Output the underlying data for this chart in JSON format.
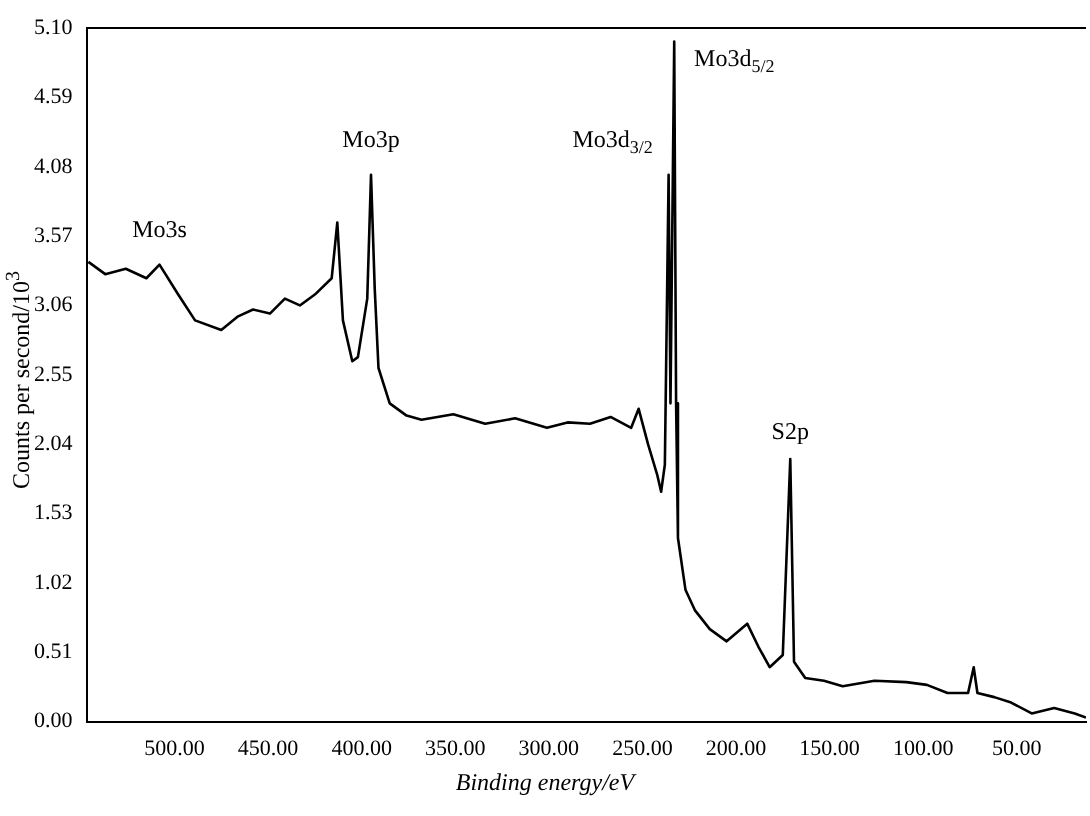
{
  "chart_data": {
    "type": "line",
    "xlabel": "Binding energy/eV",
    "ylabel": "Counts per second/10$^{3}$",
    "x": [
      546,
      537,
      526,
      515,
      508,
      498,
      489,
      475,
      466,
      458,
      449,
      441,
      433,
      425,
      416,
      413,
      410,
      405,
      402,
      397,
      395,
      393,
      391,
      385,
      376,
      368,
      351,
      334,
      318,
      301,
      290,
      278,
      267,
      256,
      252,
      247,
      242,
      240,
      238,
      236,
      235,
      233,
      232,
      231,
      227,
      222,
      214,
      205,
      194,
      188,
      182,
      175,
      171,
      169,
      163,
      153,
      143,
      126,
      109,
      98,
      87,
      76,
      73,
      71,
      62,
      53,
      42,
      30,
      19,
      13
    ],
    "series": [
      {
        "color": "#000000",
        "values": [
          3.38,
          3.29,
          3.33,
          3.26,
          3.36,
          3.14,
          2.95,
          2.88,
          2.98,
          3.03,
          3.0,
          3.11,
          3.06,
          3.14,
          3.26,
          3.67,
          2.95,
          2.65,
          2.68,
          3.11,
          4.02,
          3.18,
          2.6,
          2.34,
          2.25,
          2.22,
          2.26,
          2.19,
          2.23,
          2.16,
          2.2,
          2.19,
          2.24,
          2.16,
          2.3,
          2.04,
          1.81,
          1.69,
          1.89,
          4.02,
          2.34,
          5.0,
          2.34,
          1.35,
          0.97,
          0.82,
          0.68,
          0.59,
          0.72,
          0.55,
          0.4,
          0.49,
          1.93,
          0.44,
          0.32,
          0.3,
          0.26,
          0.3,
          0.29,
          0.27,
          0.21,
          0.21,
          0.4,
          0.21,
          0.18,
          0.14,
          0.06,
          0.1,
          0.06,
          0.03
        ]
      }
    ],
    "xlim": [
      547,
      13
    ],
    "ylim": [
      0,
      5.1
    ],
    "xticks": [
      {
        "value": 500,
        "label": "500.00"
      },
      {
        "value": 450,
        "label": "450.00"
      },
      {
        "value": 400,
        "label": "400.00"
      },
      {
        "value": 350,
        "label": "350.00"
      },
      {
        "value": 300,
        "label": "300.00"
      },
      {
        "value": 250,
        "label": "250.00"
      },
      {
        "value": 200,
        "label": "200.00"
      },
      {
        "value": 150,
        "label": "150.00"
      },
      {
        "value": 100,
        "label": "100.00"
      },
      {
        "value": 50,
        "label": "50.00"
      }
    ],
    "yticks": [
      {
        "value": 0,
        "label": "0.00"
      },
      {
        "value": 0.51,
        "label": "0.51"
      },
      {
        "value": 1.02,
        "label": "1.02"
      },
      {
        "value": 1.53,
        "label": "1.53"
      },
      {
        "value": 2.04,
        "label": "2.04"
      },
      {
        "value": 2.55,
        "label": "2.55"
      },
      {
        "value": 3.06,
        "label": "3.06"
      },
      {
        "value": 3.57,
        "label": "3.57"
      },
      {
        "value": 4.08,
        "label": "4.08"
      },
      {
        "value": 4.59,
        "label": "4.59"
      },
      {
        "value": 5.1,
        "label": "5.10"
      }
    ],
    "annotations": [
      {
        "text": "Mo3s",
        "x": 508,
        "y": 3.36
      },
      {
        "text": "Mo3p",
        "x": 395,
        "y": 4.02
      },
      {
        "text": "Mo3d$_{3/2}$",
        "x": 236,
        "y": 4.02
      },
      {
        "text": "Mo3d$_{5/2}$",
        "x": 233,
        "y": 5.0
      },
      {
        "text": "S2p",
        "x": 171,
        "y": 1.93
      }
    ],
    "grid": false,
    "legend": false,
    "marker": "none",
    "line_style": "solid"
  }
}
